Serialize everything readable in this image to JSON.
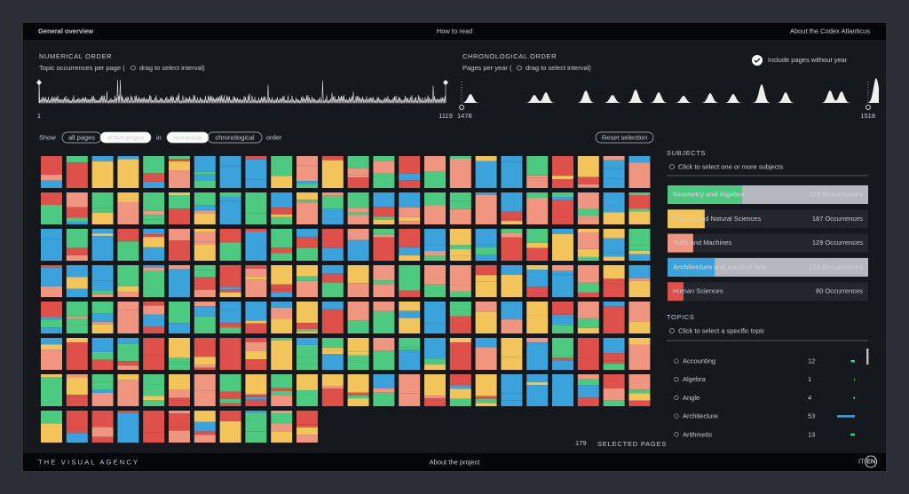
{
  "nav": {
    "left": "General overview",
    "center": "How to read",
    "right": "About the Codex Atlanticus"
  },
  "numerical": {
    "title": "NUMERICAL ORDER",
    "hint_start": "Topic occurrences per page (",
    "hint_end": "drag to select interval)",
    "min_label": 1,
    "max_label": 1119
  },
  "chronological": {
    "title": "CHRONOLOGICAL ORDER",
    "hint_start": "Pages per year (",
    "hint_end": "drag to select interval)",
    "min_label": 1478,
    "max_label": 1518,
    "checkbox_label": "Include pages without year"
  },
  "controls": {
    "show": "Show",
    "all_pages": "all pages",
    "active_pages": "active pages",
    "in": "in",
    "numerical": "numerical",
    "chronological": "chronological",
    "order": "order",
    "reset": "Reset selection"
  },
  "subjects": {
    "title": "SUBJECTS",
    "hint": "Click to select one or more subjects",
    "items": [
      {
        "name": "Geometry and Algebra",
        "count": 376,
        "unit": "Occurrences",
        "color": "#4ccb80",
        "selected": true
      },
      {
        "name": "Physics and Natural Sciences",
        "count": 187,
        "unit": "Occurrences",
        "color": "#f2c45a",
        "selected": false
      },
      {
        "name": "Tools and Machines",
        "count": 129,
        "unit": "Occurrences",
        "color": "#ef9580",
        "selected": false
      },
      {
        "name": "Architecture and Applied Arts",
        "count": 238,
        "unit": "Occurrences",
        "color": "#3aa3dc",
        "selected": true
      },
      {
        "name": "Human Sciences",
        "count": 80,
        "unit": "Occurrences",
        "color": "#e0504a",
        "selected": false
      }
    ]
  },
  "topics": {
    "title": "TOPICS",
    "hint": "Click to select a specific topic",
    "items": [
      {
        "name": "Accounting",
        "count": 12,
        "color": "#4ccb80"
      },
      {
        "name": "Algebra",
        "count": 1,
        "color": "#4ccb80"
      },
      {
        "name": "Angle",
        "count": 4,
        "color": "#4ccb80"
      },
      {
        "name": "Architecture",
        "count": 53,
        "color": "#3aa3dc"
      },
      {
        "name": "Arithmetic",
        "count": 13,
        "color": "#4ccb80"
      }
    ]
  },
  "selected": {
    "count": 179,
    "label": "SELECTED PAGES"
  },
  "footer": {
    "brand": "THE VISUAL AGENCY",
    "center": "About the project",
    "lang_it": "IT",
    "lang_en": "EN"
  }
}
